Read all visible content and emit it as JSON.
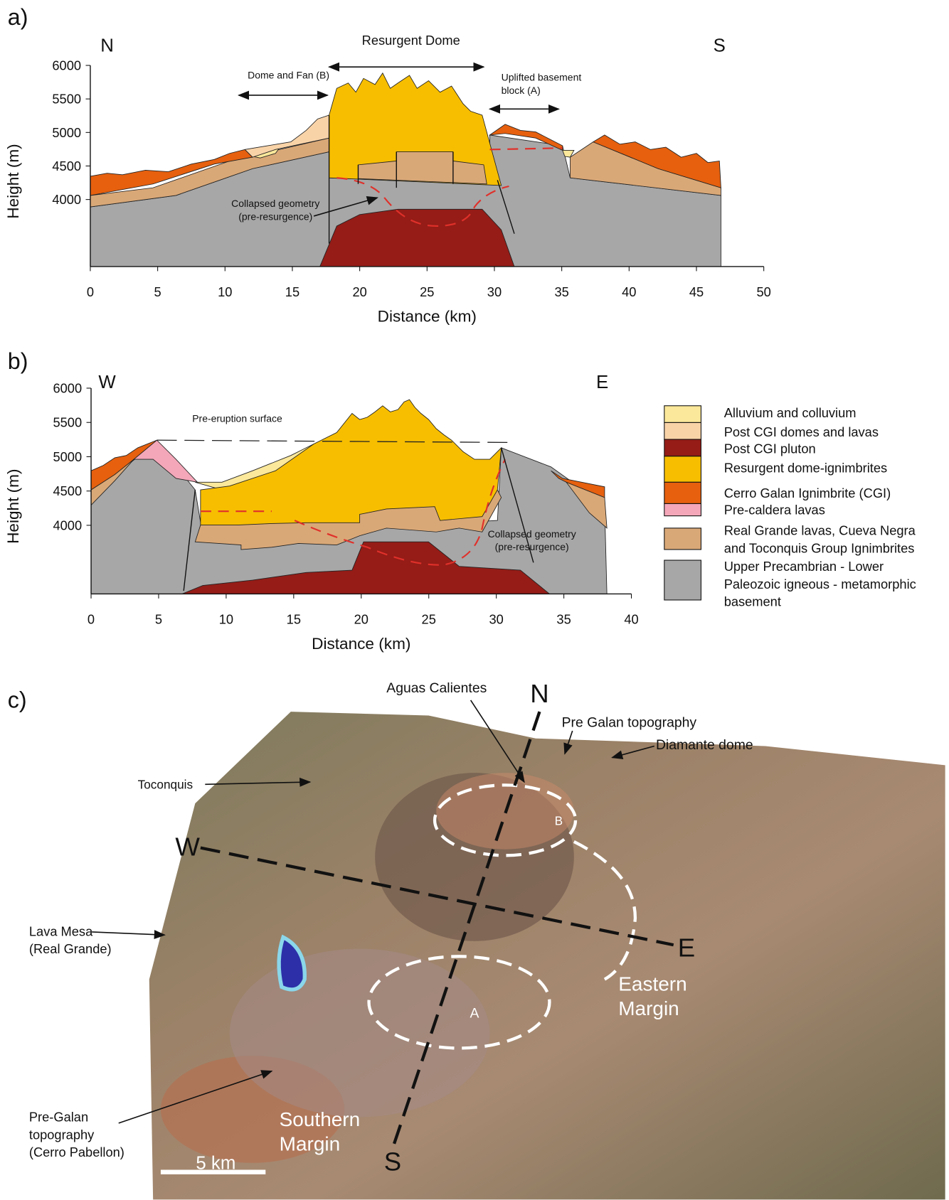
{
  "chart_data": [
    {
      "type": "cross-section",
      "panel_label": "a)",
      "xlabel": "Distance (km)",
      "ylabel": "Height (m)",
      "xlim": [
        0,
        50
      ],
      "xticks": [
        0,
        5,
        10,
        15,
        20,
        25,
        30,
        35,
        40,
        45,
        50
      ],
      "ylim": [
        3000,
        6000
      ],
      "yticks": [
        4000,
        4500,
        5000,
        5500,
        6000
      ],
      "annotations": [
        [
          "N"
        ],
        [
          "S"
        ],
        [
          "Resurgent Dome"
        ],
        [
          "Dome and Fan (B)"
        ],
        [
          "Uplifted basement",
          "block (A)"
        ],
        [
          "Collapsed geometry",
          "(pre-resurgence)"
        ]
      ]
    },
    {
      "type": "cross-section",
      "panel_label": "b)",
      "xlabel": "Distance (km)",
      "ylabel": "Height (m)",
      "xlim": [
        0,
        40
      ],
      "xticks": [
        0,
        5,
        10,
        15,
        20,
        25,
        30,
        35,
        40
      ],
      "ylim": [
        3000,
        6000
      ],
      "yticks": [
        4000,
        4500,
        5000,
        5500,
        6000
      ],
      "annotations": [
        [
          "W"
        ],
        [
          "E"
        ],
        [
          "Pre-eruption surface"
        ],
        [
          "Collapsed geometry",
          "(pre-resurgence)"
        ]
      ]
    }
  ],
  "legend": {
    "items": [
      {
        "lines": [
          "Alluvium and colluvium"
        ],
        "color": "#fbe89a"
      },
      {
        "lines": [
          "Post CGI domes and lavas"
        ],
        "color": "#f9d3a8"
      },
      {
        "lines": [
          "Post CGI pluton"
        ],
        "color": "#951c17"
      },
      {
        "lines": [
          "Resurgent dome-ignimbrites"
        ],
        "color": "#f7be00"
      },
      {
        "lines": [
          "Cerro Galan Ignimbrite (CGI)"
        ],
        "color": "#e6600e"
      },
      {
        "lines": [
          "Pre-caldera lavas"
        ],
        "color": "#f4a7b9"
      },
      {
        "lines": [
          "Real Grande lavas, Cueva Negra",
          "and Toconquis Group Ignimbrites"
        ],
        "color": "#d9a877"
      },
      {
        "lines": [
          "Upper Precambrian - Lower",
          "Paleozoic igneous - metamorphic",
          "basement"
        ],
        "color": "#a7a7a7"
      }
    ]
  },
  "map": {
    "panel_label": "c)",
    "labels": [
      [
        "Aguas Calientes"
      ],
      [
        "N"
      ],
      [
        "Pre Galan topography"
      ],
      [
        "Diamante dome"
      ],
      [
        "Toconquis"
      ],
      [
        "W"
      ],
      [
        "Lava Mesa",
        "(Real Grande)"
      ],
      [
        "E"
      ],
      [
        "B"
      ],
      [
        "A"
      ],
      [
        "Eastern",
        "Margin"
      ],
      [
        "Pre-Galan",
        "topography",
        "(Cerro Pabellon)"
      ],
      [
        "Southern",
        "Margin"
      ],
      [
        "S"
      ],
      [
        "5 km"
      ]
    ]
  }
}
